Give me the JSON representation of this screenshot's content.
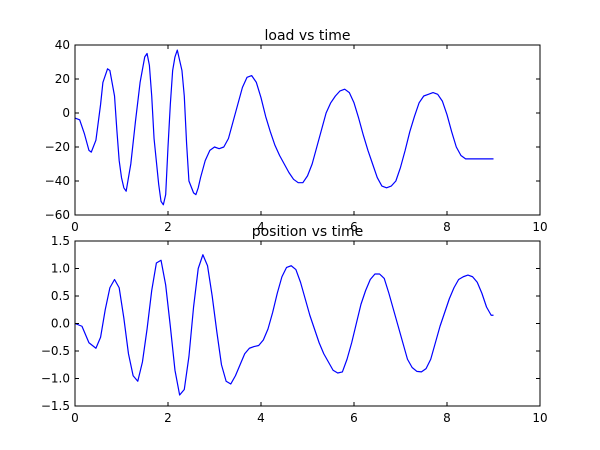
{
  "chart_data": [
    {
      "type": "line",
      "title": "load vs time",
      "xlabel": "",
      "ylabel": "",
      "xlim": [
        0,
        10
      ],
      "ylim": [
        -60,
        40
      ],
      "xticks": [
        0,
        2,
        4,
        6,
        8,
        10
      ],
      "yticks": [
        -60,
        -40,
        -20,
        0,
        20,
        40
      ],
      "grid": false,
      "color": "#0000ff",
      "series": [
        {
          "x": [
            0.0,
            0.1,
            0.2,
            0.3,
            0.35,
            0.45,
            0.55,
            0.6,
            0.7,
            0.75,
            0.85,
            0.9,
            0.95,
            1.0,
            1.05,
            1.1,
            1.2,
            1.3,
            1.4,
            1.5,
            1.55,
            1.6,
            1.65,
            1.7,
            1.8,
            1.85,
            1.9,
            1.95,
            2.0,
            2.05,
            2.1,
            2.15,
            2.2,
            2.3,
            2.35,
            2.4,
            2.45,
            2.55,
            2.6,
            2.65,
            2.7,
            2.8,
            2.9,
            3.0,
            3.1,
            3.2,
            3.3,
            3.4,
            3.5,
            3.6,
            3.7,
            3.8,
            3.9,
            4.0,
            4.1,
            4.2,
            4.3,
            4.4,
            4.5,
            4.6,
            4.7,
            4.8,
            4.9,
            5.0,
            5.1,
            5.2,
            5.3,
            5.4,
            5.5,
            5.6,
            5.7,
            5.8,
            5.9,
            6.0,
            6.1,
            6.2,
            6.3,
            6.4,
            6.5,
            6.6,
            6.7,
            6.8,
            6.9,
            7.0,
            7.1,
            7.2,
            7.3,
            7.4,
            7.5,
            7.6,
            7.7,
            7.8,
            7.9,
            8.0,
            8.1,
            8.2,
            8.3,
            8.4,
            8.5,
            8.6,
            8.7,
            8.8,
            8.9,
            9.0
          ],
          "y": [
            -3,
            -4,
            -12,
            -22,
            -23,
            -16,
            5,
            18,
            26,
            25,
            10,
            -10,
            -28,
            -38,
            -44,
            -46,
            -30,
            -5,
            18,
            33,
            35,
            28,
            10,
            -15,
            -42,
            -52,
            -54,
            -48,
            -20,
            5,
            25,
            33,
            37,
            25,
            10,
            -18,
            -40,
            -47,
            -48,
            -44,
            -38,
            -28,
            -22,
            -20,
            -21,
            -20,
            -15,
            -5,
            5,
            15,
            21,
            22,
            18,
            9,
            -2,
            -11,
            -19,
            -25,
            -30,
            -35,
            -39,
            -41,
            -41,
            -37,
            -30,
            -20,
            -10,
            0,
            6,
            10,
            13,
            14,
            12,
            6,
            -3,
            -13,
            -22,
            -30,
            -38,
            -43,
            -44,
            -43,
            -40,
            -32,
            -22,
            -11,
            -2,
            6,
            10,
            11,
            12,
            11,
            7,
            -1,
            -11,
            -20,
            -25,
            -27,
            -27,
            -27,
            -27,
            -27,
            -27,
            -27
          ]
        }
      ]
    },
    {
      "type": "line",
      "title": "position vs time",
      "xlabel": "",
      "ylabel": "",
      "xlim": [
        0,
        10
      ],
      "ylim": [
        -1.5,
        1.5
      ],
      "xticks": [
        0,
        2,
        4,
        6,
        8,
        10
      ],
      "yticks": [
        -1.5,
        -1.0,
        -0.5,
        0.0,
        0.5,
        1.0,
        1.5
      ],
      "grid": false,
      "color": "#0000ff",
      "series": [
        {
          "x": [
            0.0,
            0.15,
            0.3,
            0.45,
            0.55,
            0.65,
            0.75,
            0.85,
            0.95,
            1.05,
            1.15,
            1.25,
            1.35,
            1.45,
            1.55,
            1.65,
            1.75,
            1.85,
            1.95,
            2.05,
            2.15,
            2.25,
            2.35,
            2.45,
            2.55,
            2.65,
            2.75,
            2.85,
            2.95,
            3.05,
            3.15,
            3.25,
            3.35,
            3.45,
            3.55,
            3.65,
            3.75,
            3.85,
            3.95,
            4.05,
            4.15,
            4.25,
            4.35,
            4.45,
            4.55,
            4.65,
            4.75,
            4.85,
            4.95,
            5.05,
            5.15,
            5.25,
            5.35,
            5.45,
            5.55,
            5.65,
            5.75,
            5.85,
            5.95,
            6.05,
            6.15,
            6.25,
            6.35,
            6.45,
            6.55,
            6.65,
            6.75,
            6.85,
            6.95,
            7.05,
            7.15,
            7.25,
            7.35,
            7.45,
            7.55,
            7.65,
            7.75,
            7.85,
            7.95,
            8.05,
            8.15,
            8.25,
            8.35,
            8.45,
            8.55,
            8.65,
            8.75,
            8.85,
            8.95,
            9.0
          ],
          "y": [
            0.0,
            -0.05,
            -0.35,
            -0.45,
            -0.25,
            0.25,
            0.65,
            0.8,
            0.65,
            0.1,
            -0.55,
            -0.95,
            -1.05,
            -0.7,
            -0.1,
            0.6,
            1.1,
            1.15,
            0.7,
            -0.05,
            -0.85,
            -1.3,
            -1.2,
            -0.6,
            0.3,
            1.0,
            1.25,
            1.05,
            0.5,
            -0.15,
            -0.75,
            -1.05,
            -1.1,
            -0.95,
            -0.75,
            -0.55,
            -0.45,
            -0.42,
            -0.4,
            -0.3,
            -0.1,
            0.2,
            0.55,
            0.85,
            1.02,
            1.05,
            0.98,
            0.75,
            0.45,
            0.15,
            -0.1,
            -0.35,
            -0.55,
            -0.7,
            -0.85,
            -0.9,
            -0.88,
            -0.65,
            -0.35,
            0.0,
            0.35,
            0.6,
            0.8,
            0.9,
            0.9,
            0.82,
            0.55,
            0.25,
            -0.05,
            -0.35,
            -0.65,
            -0.8,
            -0.87,
            -0.88,
            -0.82,
            -0.65,
            -0.35,
            -0.05,
            0.2,
            0.45,
            0.65,
            0.8,
            0.85,
            0.88,
            0.85,
            0.75,
            0.55,
            0.3,
            0.15,
            0.15
          ]
        }
      ]
    }
  ]
}
